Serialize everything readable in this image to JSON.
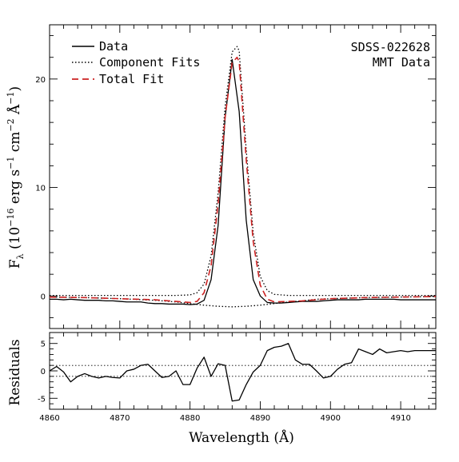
{
  "chart_data": [
    {
      "panel": "spectrum",
      "type": "line",
      "ylabel": "Fλ (10⁻¹⁶ erg s⁻¹ cm⁻² Å⁻¹)",
      "xlim": [
        4860,
        4915
      ],
      "ylim": [
        -3,
        25
      ],
      "ytick_labels": [
        "0",
        "10",
        "20"
      ],
      "yticks": [
        0,
        10,
        20
      ],
      "legend_position": "top-left",
      "legend": [
        "Data",
        "Component Fits",
        "Total Fit"
      ],
      "annotations": [
        "SDSS-022628",
        "MMT Data"
      ],
      "series": [
        {
          "name": "Data",
          "color": "#000000",
          "style": "solid",
          "x": [
            4860,
            4861,
            4862,
            4863,
            4864,
            4865,
            4866,
            4867,
            4868,
            4869,
            4870,
            4871,
            4872,
            4873,
            4874,
            4875,
            4876,
            4877,
            4878,
            4879,
            4880,
            4881,
            4882,
            4883,
            4884,
            4885,
            4886,
            4887,
            4888,
            4889,
            4890,
            4891,
            4892,
            4893,
            4894,
            4895,
            4896,
            4897,
            4898,
            4899,
            4900,
            4901,
            4902,
            4903,
            4904,
            4905,
            4906,
            4907,
            4908,
            4909,
            4910,
            4911,
            4912,
            4913,
            4914,
            4915
          ],
          "y": [
            -0.3,
            -0.3,
            -0.35,
            -0.3,
            -0.35,
            -0.4,
            -0.4,
            -0.4,
            -0.45,
            -0.45,
            -0.5,
            -0.55,
            -0.55,
            -0.55,
            -0.65,
            -0.7,
            -0.7,
            -0.75,
            -0.75,
            -0.75,
            -0.8,
            -0.75,
            -0.4,
            1.5,
            6.5,
            16.5,
            21.8,
            17,
            7,
            1.5,
            0,
            -0.6,
            -0.65,
            -0.65,
            -0.6,
            -0.55,
            -0.5,
            -0.5,
            -0.5,
            -0.45,
            -0.4,
            -0.35,
            -0.35,
            -0.35,
            -0.35,
            -0.3,
            -0.3,
            -0.3,
            -0.3,
            -0.3,
            -0.35,
            -0.35,
            -0.35,
            -0.35,
            -0.35,
            -0.35
          ]
        },
        {
          "name": "Component Fits (narrow)",
          "color": "#000000",
          "style": "dotted",
          "x": [
            4860,
            4870,
            4878,
            4880,
            4881,
            4882,
            4883,
            4884,
            4885,
            4886,
            4886.7,
            4887,
            4888,
            4889,
            4890,
            4891,
            4892,
            4894,
            4900,
            4915
          ],
          "y": [
            0.05,
            0.05,
            0.05,
            0.1,
            0.3,
            1.1,
            3.7,
            9.5,
            17.5,
            22.5,
            23.0,
            22.6,
            13.5,
            5.8,
            1.8,
            0.5,
            0.15,
            0.05,
            0.05,
            0.05
          ]
        },
        {
          "name": "Component Fits (broad)",
          "color": "#000000",
          "style": "dotted",
          "x": [
            4860,
            4865,
            4870,
            4875,
            4878,
            4880,
            4882,
            4884,
            4886,
            4888,
            4890,
            4892,
            4894,
            4896,
            4898,
            4900,
            4905,
            4910,
            4915
          ],
          "y": [
            -0.1,
            -0.15,
            -0.25,
            -0.4,
            -0.55,
            -0.7,
            -0.85,
            -0.95,
            -1.0,
            -0.95,
            -0.85,
            -0.7,
            -0.55,
            -0.45,
            -0.3,
            -0.25,
            -0.15,
            -0.1,
            -0.05
          ]
        },
        {
          "name": "Total Fit",
          "color": "#cc2222",
          "style": "dashed",
          "x": [
            4860,
            4865,
            4870,
            4875,
            4878,
            4880,
            4881,
            4882,
            4883,
            4884,
            4885,
            4886,
            4886.7,
            4887,
            4888,
            4889,
            4890,
            4891,
            4892,
            4894,
            4896,
            4900,
            4905,
            4910,
            4915
          ],
          "y": [
            -0.1,
            -0.15,
            -0.25,
            -0.35,
            -0.5,
            -0.6,
            -0.5,
            0.3,
            2.8,
            8.5,
            16.5,
            21.5,
            22.0,
            21.6,
            12.6,
            5.0,
            1.0,
            -0.3,
            -0.55,
            -0.5,
            -0.45,
            -0.25,
            -0.15,
            -0.1,
            -0.05
          ]
        }
      ]
    },
    {
      "panel": "residuals",
      "type": "line",
      "xlabel": "Wavelength (Å)",
      "ylabel": "Residuals",
      "xlim": [
        4860,
        4915
      ],
      "ylim": [
        -7,
        7
      ],
      "xticks": [
        4860,
        4870,
        4880,
        4890,
        4900,
        4910
      ],
      "xtick_labels": [
        "4860",
        "4870",
        "4880",
        "4890",
        "4900",
        "4910"
      ],
      "yticks": [
        -5,
        0,
        5
      ],
      "ytick_labels": [
        "-5",
        "0",
        "5"
      ],
      "reference_lines": [
        1,
        -1
      ],
      "series": [
        {
          "name": "Residuals",
          "color": "#000000",
          "style": "solid",
          "x": [
            4860,
            4861,
            4862,
            4863,
            4864,
            4865,
            4866,
            4867,
            4868,
            4869,
            4870,
            4871,
            4872,
            4873,
            4874,
            4875,
            4876,
            4877,
            4878,
            4879,
            4880,
            4881,
            4882,
            4883,
            4884,
            4885,
            4886,
            4887,
            4888,
            4889,
            4890,
            4891,
            4892,
            4893,
            4894,
            4895,
            4896,
            4897,
            4898,
            4899,
            4900,
            4901,
            4902,
            4903,
            4904,
            4905,
            4906,
            4907,
            4908,
            4909,
            4910,
            4911,
            4912,
            4913,
            4914,
            4915
          ],
          "y": [
            0,
            0.8,
            -0.2,
            -2,
            -1,
            -0.5,
            -1,
            -1.3,
            -1,
            -1.2,
            -1.3,
            0,
            0.3,
            1,
            1.2,
            0,
            -1.2,
            -1,
            0,
            -2.5,
            -2.5,
            0.5,
            2.5,
            -1,
            1.3,
            1,
            -5.5,
            -5.3,
            -2.5,
            -0.2,
            1,
            3.7,
            4.3,
            4.5,
            5,
            2,
            1.2,
            1.2,
            0,
            -1.3,
            -1,
            0.3,
            1.2,
            1.5,
            4,
            3.5,
            3,
            4,
            3.3,
            3.5,
            3.7,
            3.5,
            3.7,
            3.7,
            3.7,
            3.7
          ]
        }
      ]
    }
  ]
}
